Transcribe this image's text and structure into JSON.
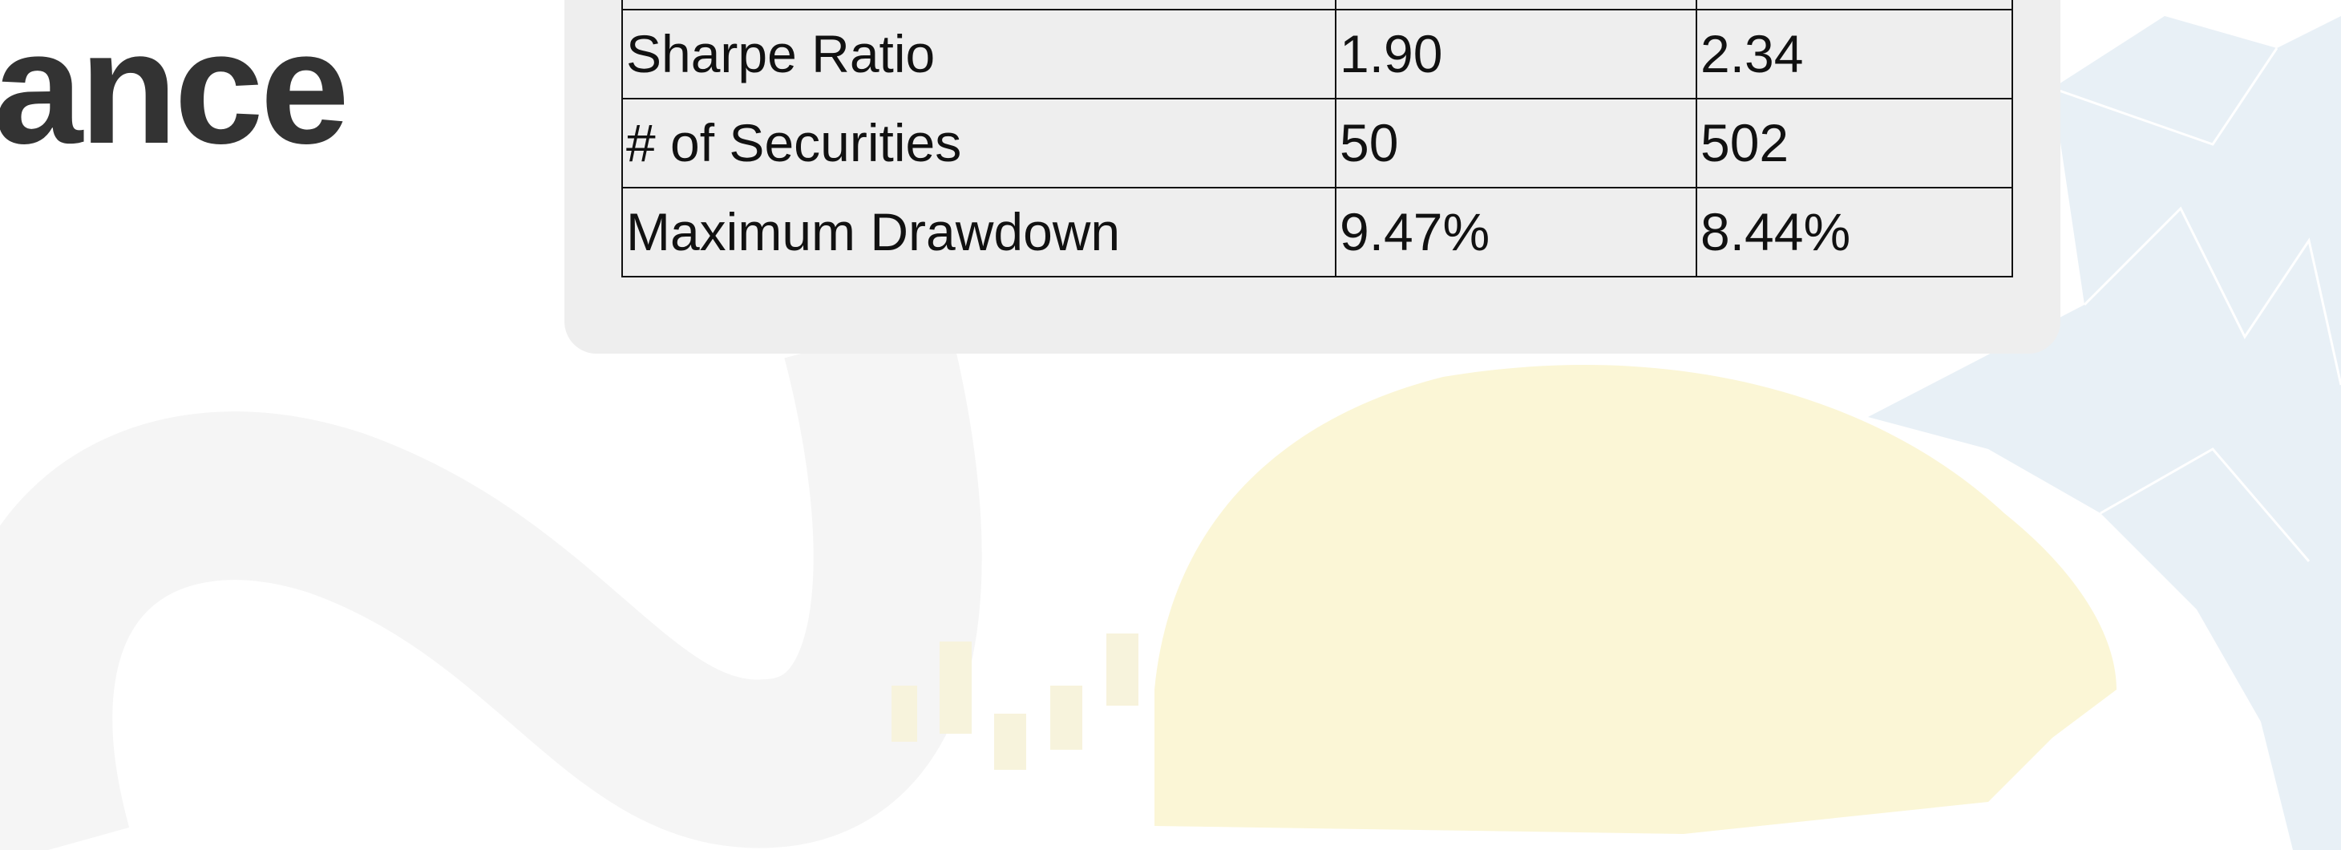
{
  "title_fragment": "ance",
  "table": {
    "rows": [
      [
        "Sharpe Ratio",
        "1.90",
        "2.34"
      ],
      [
        "# of Securities",
        "50",
        "502"
      ],
      [
        "Maximum Drawdown",
        "9.47%",
        "8.44%"
      ]
    ]
  }
}
